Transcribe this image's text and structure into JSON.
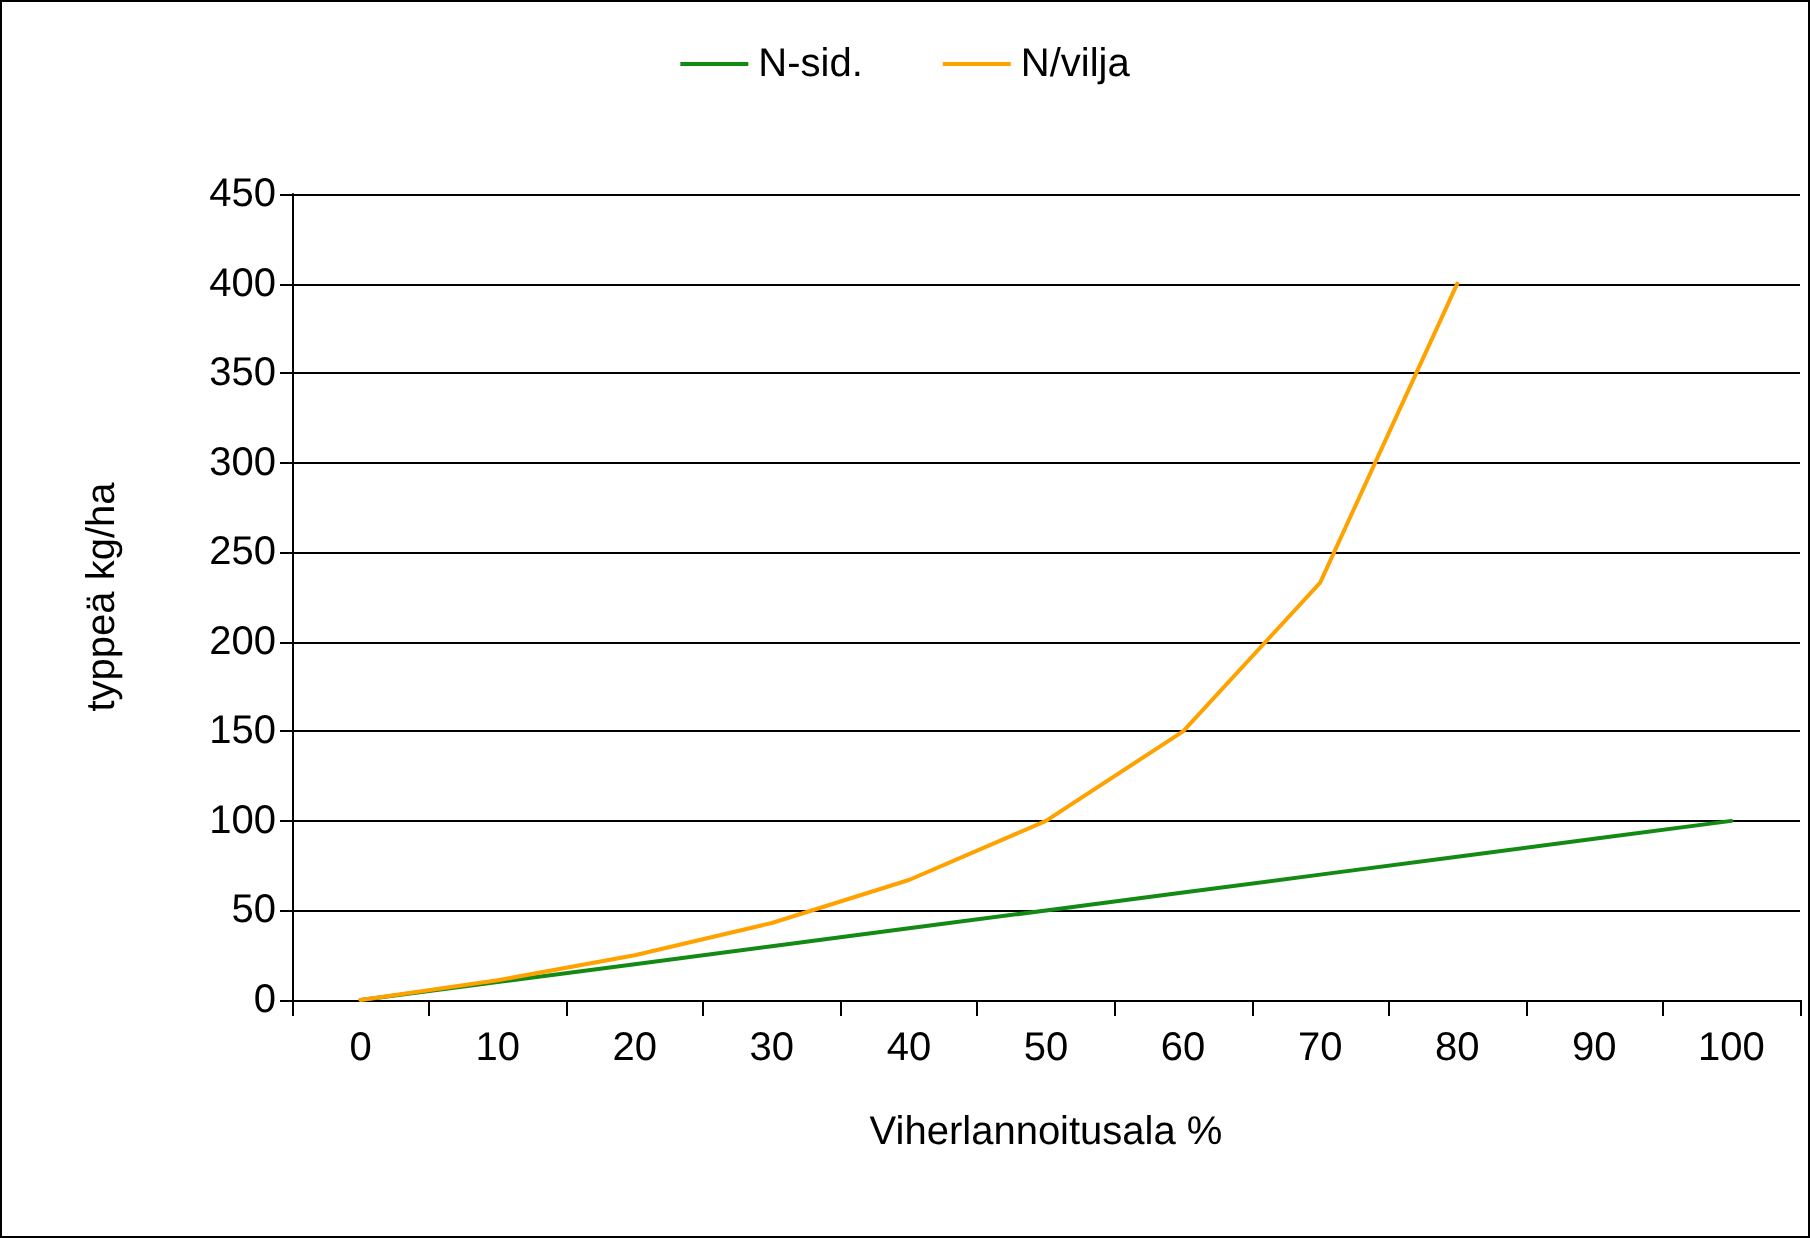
{
  "chart_data": {
    "type": "line",
    "xlabel": "Viherlannoitusala %",
    "ylabel": "typpeä kg/ha",
    "categories": [
      "0",
      "10",
      "20",
      "30",
      "40",
      "50",
      "60",
      "70",
      "80",
      "90",
      "100"
    ],
    "series": [
      {
        "name": "N-sid.",
        "color": "#138a13",
        "values": [
          0,
          10,
          20,
          30,
          40,
          50,
          60,
          70,
          80,
          90,
          100
        ]
      },
      {
        "name": "N/vilja",
        "color": "#ffa200",
        "values": [
          0,
          11,
          25,
          43,
          67,
          100,
          150,
          233,
          400,
          null,
          null
        ]
      }
    ],
    "ylim": [
      0,
      450
    ],
    "yticks": [
      0,
      50,
      100,
      150,
      200,
      250,
      300,
      350,
      400,
      450
    ],
    "grid": "y",
    "legend": "top",
    "marker": "none",
    "line_style": "solid"
  }
}
